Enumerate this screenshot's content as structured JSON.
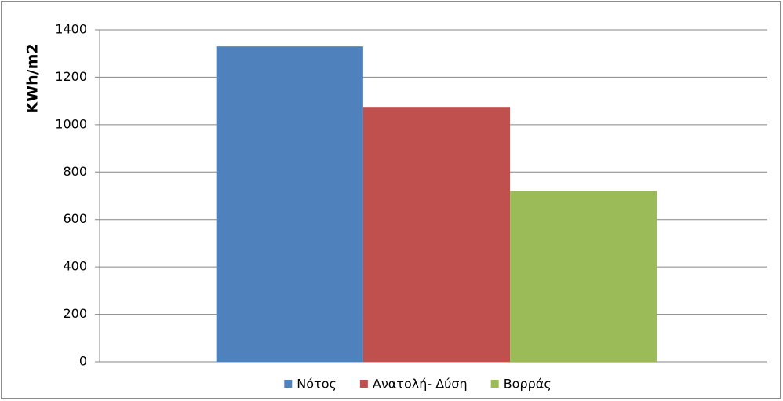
{
  "chart_data": {
    "type": "bar",
    "y_label": "KWh/m2",
    "categories": [
      null
    ],
    "series": [
      {
        "name": "Νότος",
        "color": "#4f81bd",
        "values": [
          1330
        ]
      },
      {
        "name": "Ανατολή- Δύση",
        "color": "#c0504d",
        "values": [
          1075
        ]
      },
      {
        "name": "Βορράς",
        "color": "#9bbb59",
        "values": [
          720
        ]
      }
    ],
    "ylim": [
      0,
      1400
    ],
    "yticks": [
      0,
      200,
      400,
      600,
      800,
      1000,
      1200,
      1400
    ],
    "grid": true,
    "legend": "bottom"
  }
}
